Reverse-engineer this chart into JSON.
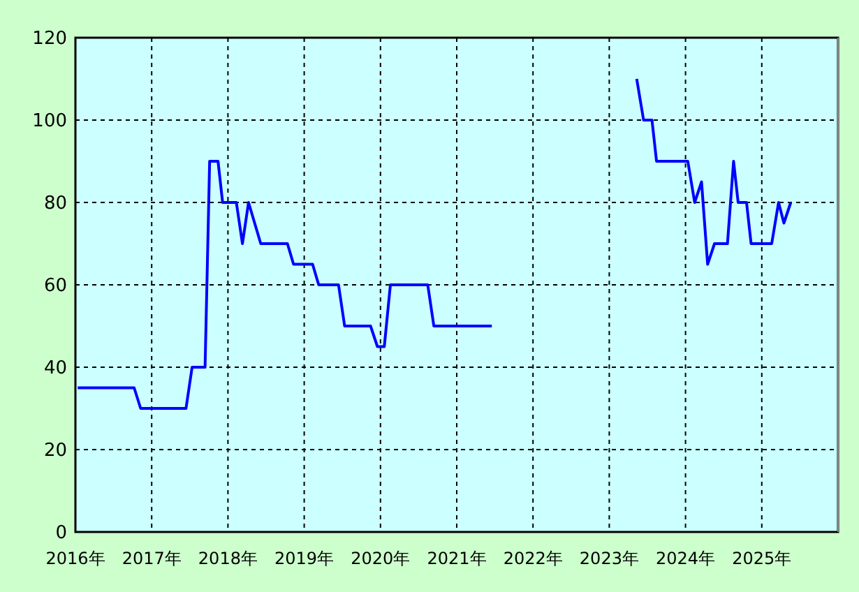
{
  "chart_data": {
    "type": "line",
    "x": [
      2016.03,
      2016.77,
      2016.855,
      2017.45,
      2017.53,
      2017.7,
      2017.76,
      2017.87,
      2017.93,
      2018.11,
      2018.19,
      2018.27,
      2018.43,
      2018.78,
      2018.86,
      2019.11,
      2019.19,
      2019.45,
      2019.53,
      2019.87,
      2019.96,
      2020.05,
      2020.13,
      2020.62,
      2020.7,
      2021.46,
      2022.4,
      2023.36,
      2023.45,
      2023.56,
      2023.62,
      2024.03,
      2024.12,
      2024.21,
      2024.29,
      2024.38,
      2024.55,
      2024.63,
      2024.69,
      2024.8,
      2024.86,
      2025.13,
      2025.22,
      2025.29,
      2025.38
    ],
    "series": [
      {
        "color": "#0000ff",
        "values": [
          35,
          35,
          30,
          30,
          40,
          40,
          90,
          90,
          80,
          80,
          70,
          80,
          70,
          70,
          65,
          65,
          60,
          60,
          50,
          50,
          45,
          45,
          60,
          60,
          50,
          50,
          null,
          110,
          100,
          100,
          90,
          90,
          80,
          85,
          65,
          70,
          70,
          90,
          80,
          80,
          70,
          70,
          80,
          75,
          80
        ]
      }
    ],
    "xlim": [
      2016,
      2026
    ],
    "xticks": [
      {
        "value": 2016,
        "label": "2016年"
      },
      {
        "value": 2017,
        "label": "2017年"
      },
      {
        "value": 2018,
        "label": "2018年"
      },
      {
        "value": 2019,
        "label": "2019年"
      },
      {
        "value": 2020,
        "label": "2020年"
      },
      {
        "value": 2021,
        "label": "2021年"
      },
      {
        "value": 2022,
        "label": "2022年"
      },
      {
        "value": 2023,
        "label": "2023年"
      },
      {
        "value": 2024,
        "label": "2024年"
      },
      {
        "value": 2025,
        "label": "2025年"
      }
    ],
    "ylim": [
      0,
      120
    ],
    "yticks": [
      0,
      20,
      40,
      60,
      80,
      100,
      120
    ],
    "grid": true,
    "line_style": "solid",
    "marker": "none"
  }
}
